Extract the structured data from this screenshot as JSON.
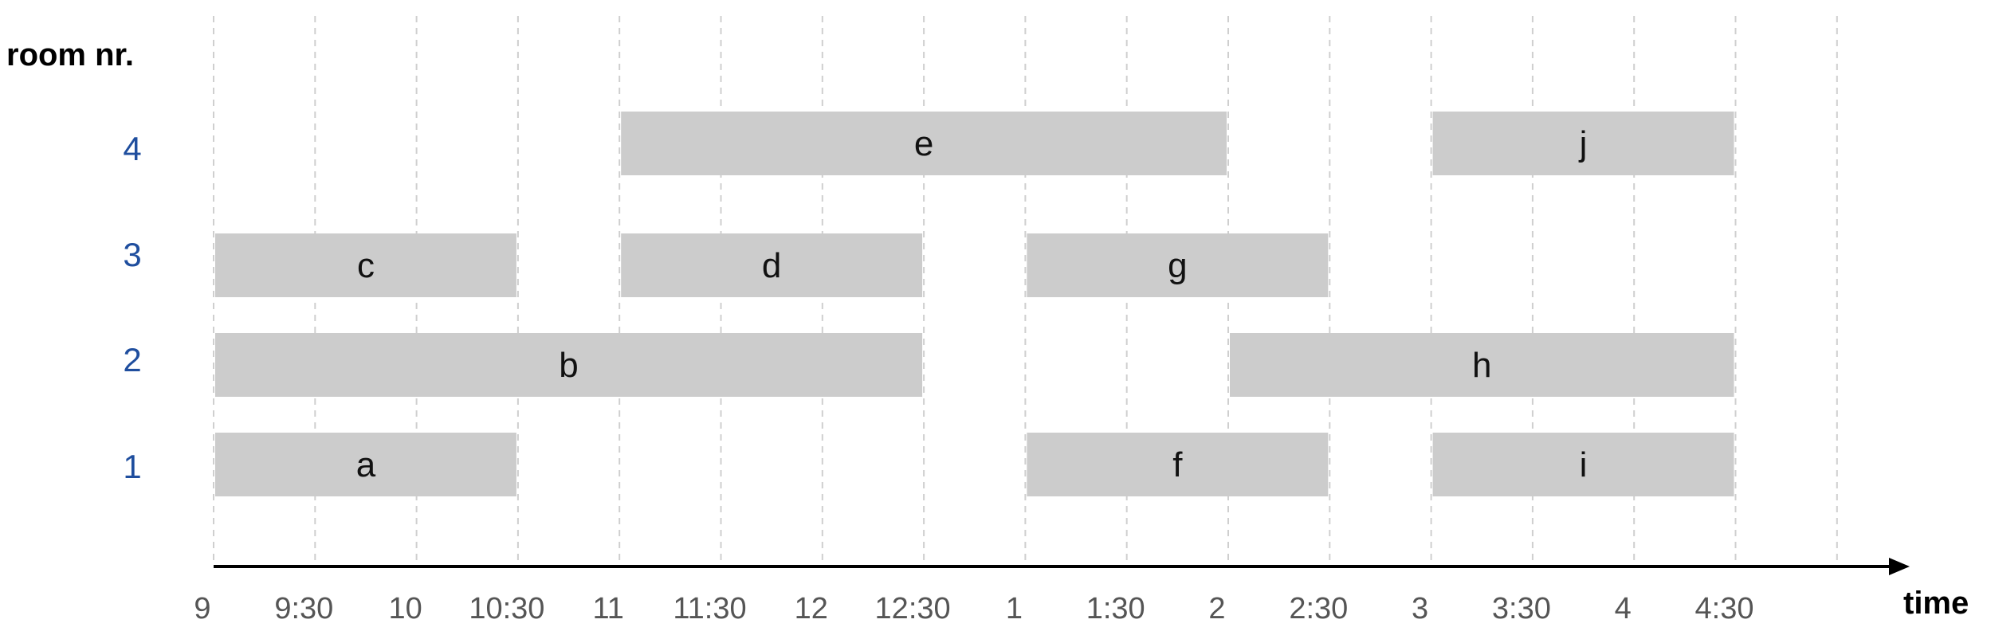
{
  "chart_data": {
    "type": "interval-schedule",
    "y_axis_title": "room nr.",
    "x_axis_title": "time",
    "ticks": [
      "9",
      "9:30",
      "10",
      "10:30",
      "11",
      "11:30",
      "12",
      "12:30",
      "1",
      "1:30",
      "2",
      "2:30",
      "3",
      "3:30",
      "4",
      "4:30"
    ],
    "rooms": [
      "1",
      "2",
      "3",
      "4"
    ],
    "intervals": [
      {
        "label": "a",
        "room": "1",
        "start": "9:00",
        "end": "10:30"
      },
      {
        "label": "b",
        "room": "2",
        "start": "9:00",
        "end": "12:30"
      },
      {
        "label": "c",
        "room": "3",
        "start": "9:00",
        "end": "10:30"
      },
      {
        "label": "d",
        "room": "3",
        "start": "11:00",
        "end": "12:30"
      },
      {
        "label": "e",
        "room": "4",
        "start": "11:00",
        "end": "2:00"
      },
      {
        "label": "f",
        "room": "1",
        "start": "1:00",
        "end": "2:30"
      },
      {
        "label": "g",
        "room": "3",
        "start": "1:00",
        "end": "2:30"
      },
      {
        "label": "h",
        "room": "2",
        "start": "2:00",
        "end": "4:30"
      },
      {
        "label": "i",
        "room": "1",
        "start": "3:00",
        "end": "4:30"
      },
      {
        "label": "j",
        "room": "4",
        "start": "3:00",
        "end": "4:30"
      }
    ]
  },
  "colors": {
    "bar": "#cccccc",
    "room_label": "#1f4e9e",
    "axis": "#000000",
    "grid": "#cfcfcf"
  }
}
